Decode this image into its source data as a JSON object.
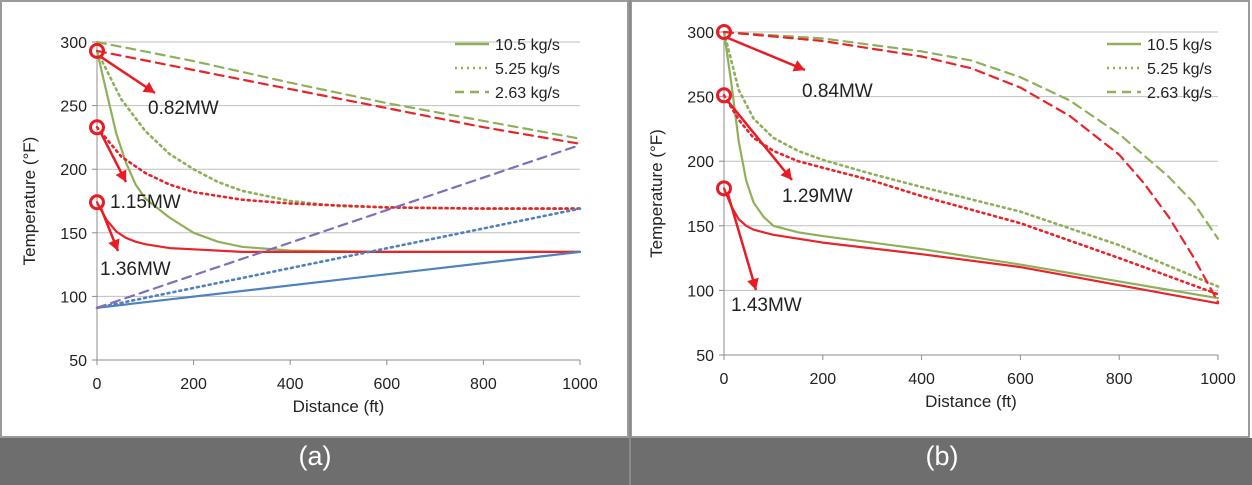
{
  "colors": {
    "green": "#8fb05a",
    "red": "#e8242b",
    "blue": "#4f81bd",
    "purple": "#7f6fb8",
    "annotation": "#e81c24",
    "grid": "#bfbfbf",
    "axis": "#8c8c8c",
    "caption_bar": "#6e6e6e"
  },
  "panels": [
    {
      "caption": "(a)"
    },
    {
      "caption": "(b)"
    }
  ],
  "chart_data": [
    {
      "type": "line",
      "title": "",
      "xlabel": "Distance (ft)",
      "ylabel": "Temperature (°F)",
      "xlim": [
        0,
        1000
      ],
      "ylim": [
        50,
        300
      ],
      "xticks": [
        0,
        200,
        400,
        600,
        800,
        1000
      ],
      "yticks": [
        50,
        100,
        150,
        200,
        250,
        300
      ],
      "grid": true,
      "legend_position": "top-right",
      "legend": [
        {
          "label": "10.5 kg/s",
          "style": "solid"
        },
        {
          "label": "5.25 kg/s",
          "style": "dotted"
        },
        {
          "label": "2.63 kg/s",
          "style": "dashed"
        }
      ],
      "annotations": [
        {
          "text": "0.82MW",
          "x": 0,
          "y": 293
        },
        {
          "text": "1.15MW",
          "x": 0,
          "y": 233
        },
        {
          "text": "1.36MW",
          "x": 0,
          "y": 174
        }
      ],
      "series": [
        {
          "color": "green",
          "style": "solid",
          "x": [
            0,
            20,
            40,
            60,
            80,
            100,
            150,
            200,
            250,
            300,
            400,
            600,
            800,
            1000
          ],
          "y": [
            293,
            260,
            228,
            205,
            188,
            177,
            162,
            150,
            143,
            139,
            136,
            135,
            135,
            135
          ]
        },
        {
          "color": "green",
          "style": "dotted",
          "x": [
            0,
            50,
            100,
            150,
            200,
            250,
            300,
            400,
            500,
            600,
            800,
            1000
          ],
          "y": [
            293,
            255,
            230,
            212,
            200,
            190,
            183,
            175,
            171,
            170,
            169,
            169
          ]
        },
        {
          "color": "green",
          "style": "dashed",
          "x": [
            0,
            200,
            400,
            600,
            800,
            1000
          ],
          "y": [
            300,
            285,
            268,
            252,
            238,
            224
          ]
        },
        {
          "color": "red",
          "style": "solid",
          "x": [
            0,
            20,
            40,
            60,
            80,
            100,
            150,
            200,
            300,
            400,
            600,
            800,
            1000
          ],
          "y": [
            174,
            160,
            151,
            146,
            143,
            141,
            138,
            137,
            135,
            135,
            135,
            135,
            135
          ]
        },
        {
          "color": "red",
          "style": "dotted",
          "x": [
            0,
            50,
            100,
            150,
            200,
            300,
            400,
            600,
            800,
            1000
          ],
          "y": [
            233,
            210,
            197,
            188,
            182,
            176,
            173,
            170,
            169,
            169
          ]
        },
        {
          "color": "red",
          "style": "dashed",
          "x": [
            0,
            200,
            400,
            600,
            800,
            1000
          ],
          "y": [
            293,
            278,
            263,
            248,
            233,
            220
          ]
        },
        {
          "color": "blue",
          "style": "solid",
          "x": [
            0,
            1000
          ],
          "y": [
            91,
            135
          ]
        },
        {
          "color": "blue",
          "style": "dotted",
          "x": [
            0,
            1000
          ],
          "y": [
            91,
            169
          ]
        },
        {
          "color": "purple",
          "style": "dashed",
          "x": [
            0,
            1000
          ],
          "y": [
            91,
            219
          ]
        }
      ]
    },
    {
      "type": "line",
      "title": "",
      "xlabel": "Distance (ft)",
      "ylabel": "Temperature (°F)",
      "xlim": [
        0,
        1000
      ],
      "ylim": [
        50,
        300
      ],
      "xticks": [
        0,
        200,
        400,
        600,
        800,
        1000
      ],
      "yticks": [
        50,
        100,
        150,
        200,
        250,
        300
      ],
      "grid": true,
      "legend_position": "top-right",
      "legend": [
        {
          "label": "10.5 kg/s",
          "style": "solid"
        },
        {
          "label": "5.25 kg/s",
          "style": "dotted"
        },
        {
          "label": "2.63 kg/s",
          "style": "dashed"
        }
      ],
      "annotations": [
        {
          "text": "0.84MW",
          "x": 0,
          "y": 300
        },
        {
          "text": "1.29MW",
          "x": 0,
          "y": 251
        },
        {
          "text": "1.43MW",
          "x": 0,
          "y": 179
        }
      ],
      "series": [
        {
          "color": "green",
          "style": "solid",
          "x": [
            0,
            15,
            30,
            45,
            60,
            80,
            100,
            150,
            200,
            400,
            600,
            800,
            1000
          ],
          "y": [
            300,
            260,
            215,
            185,
            168,
            157,
            150,
            145,
            142,
            132,
            120,
            107,
            94
          ]
        },
        {
          "color": "green",
          "style": "dotted",
          "x": [
            0,
            30,
            60,
            100,
            150,
            200,
            300,
            400,
            600,
            800,
            1000
          ],
          "y": [
            300,
            255,
            233,
            218,
            208,
            201,
            190,
            180,
            161,
            135,
            103
          ]
        },
        {
          "color": "green",
          "style": "dashed",
          "x": [
            0,
            200,
            400,
            500,
            600,
            700,
            800,
            900,
            950,
            1000
          ],
          "y": [
            300,
            295,
            285,
            278,
            265,
            247,
            221,
            188,
            168,
            140
          ]
        },
        {
          "color": "red",
          "style": "solid",
          "x": [
            0,
            15,
            30,
            45,
            60,
            80,
            100,
            150,
            200,
            400,
            600,
            800,
            1000
          ],
          "y": [
            179,
            165,
            155,
            150,
            147,
            145,
            143,
            140,
            137,
            128,
            118,
            104,
            90
          ]
        },
        {
          "color": "red",
          "style": "dotted",
          "x": [
            0,
            30,
            60,
            100,
            150,
            200,
            300,
            400,
            600,
            800,
            1000
          ],
          "y": [
            251,
            232,
            218,
            208,
            200,
            195,
            185,
            173,
            152,
            125,
            97
          ]
        },
        {
          "color": "red",
          "style": "dashed",
          "x": [
            0,
            200,
            400,
            500,
            600,
            700,
            800,
            850,
            900,
            950,
            1000
          ],
          "y": [
            300,
            293,
            281,
            272,
            257,
            235,
            205,
            183,
            157,
            126,
            91
          ]
        }
      ]
    }
  ]
}
